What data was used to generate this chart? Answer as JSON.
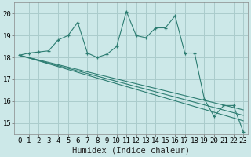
{
  "xlabel": "Humidex (Indice chaleur)",
  "xlim": [
    -0.5,
    23.5
  ],
  "ylim": [
    14.5,
    20.5
  ],
  "yticks": [
    15,
    16,
    17,
    18,
    19,
    20
  ],
  "xticks": [
    0,
    1,
    2,
    3,
    4,
    5,
    6,
    7,
    8,
    9,
    10,
    11,
    12,
    13,
    14,
    15,
    16,
    17,
    18,
    19,
    20,
    21,
    22,
    23
  ],
  "bg_color": "#cce8e8",
  "grid_color": "#aacccc",
  "line_color": "#2d7d72",
  "series1_x": [
    0,
    1,
    2,
    3,
    4,
    5,
    6,
    7,
    8,
    9,
    10,
    11,
    12,
    13,
    14,
    15,
    16,
    17,
    18,
    19,
    20,
    21,
    22,
    23
  ],
  "series1_y": [
    18.1,
    18.2,
    18.25,
    18.3,
    18.8,
    19.0,
    19.6,
    18.2,
    18.0,
    18.15,
    18.5,
    20.1,
    19.0,
    18.9,
    19.35,
    19.35,
    19.9,
    18.2,
    18.2,
    16.1,
    15.3,
    15.8,
    15.8,
    14.6
  ],
  "series2_y_start": 18.1,
  "series2_y_end": 15.35,
  "series3_y_start": 18.1,
  "series3_y_end": 15.1,
  "series4_y_start": 18.1,
  "series4_y_end": 15.6,
  "tick_fontsize": 6.5,
  "xlabel_fontsize": 7.5
}
